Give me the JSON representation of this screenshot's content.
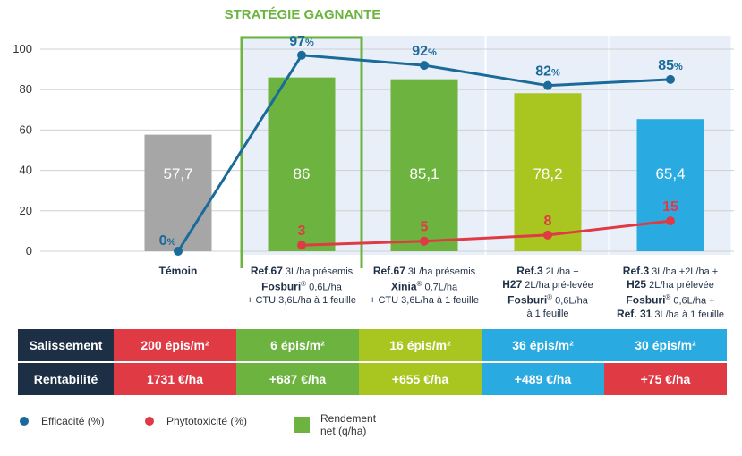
{
  "strategy_label": "STRATÉGIE GAGNANTE",
  "chart_data": {
    "type": "bar",
    "ylim": [
      0,
      100
    ],
    "yticks": [
      0,
      20,
      40,
      60,
      80,
      100
    ],
    "categories": [
      {
        "lines": [
          [
            "b",
            "Témoin"
          ]
        ]
      },
      {
        "lines": [
          [
            "b",
            "Ref.67"
          ],
          [
            "n",
            " 3L/ha présemis"
          ],
          [
            "br"
          ],
          [
            "b",
            "Fosburi"
          ],
          [
            "sup",
            "®"
          ],
          [
            "n",
            " 0,6L/ha"
          ],
          [
            "br"
          ],
          [
            "n",
            "+ CTU 3,6L/ha à 1 feuille"
          ]
        ]
      },
      {
        "lines": [
          [
            "b",
            "Ref.67"
          ],
          [
            "n",
            " 3L/ha présemis"
          ],
          [
            "br"
          ],
          [
            "b",
            "Xinia"
          ],
          [
            "sup",
            "®"
          ],
          [
            "n",
            " 0,7L/ha"
          ],
          [
            "br"
          ],
          [
            "n",
            "+ CTU 3,6L/ha à 1 feuille"
          ]
        ]
      },
      {
        "lines": [
          [
            "b",
            "Ref.3"
          ],
          [
            "n",
            " 2L/ha +"
          ],
          [
            "br"
          ],
          [
            "b",
            "H27"
          ],
          [
            "n",
            " 2L/ha pré-levée"
          ],
          [
            "br"
          ],
          [
            "b",
            "Fosburi"
          ],
          [
            "sup",
            "®"
          ],
          [
            "n",
            " 0,6L/ha"
          ],
          [
            "br"
          ],
          [
            "n",
            "à 1 feuille"
          ]
        ]
      },
      {
        "lines": [
          [
            "b",
            "Ref.3"
          ],
          [
            "n",
            " 3L/ha +2L/ha +"
          ],
          [
            "br"
          ],
          [
            "b",
            "H25"
          ],
          [
            "n",
            " 2L/ha prélevée"
          ],
          [
            "br"
          ],
          [
            "b",
            "Fosburi"
          ],
          [
            "sup",
            "®"
          ],
          [
            "n",
            " 0,6L/ha +"
          ],
          [
            "br"
          ],
          [
            "b",
            "Ref. 31"
          ],
          [
            "n",
            " 3L/ha à 1 feuille"
          ]
        ]
      }
    ],
    "series": [
      {
        "name": "Rendement net (q/ha)",
        "kind": "bar",
        "values": [
          57.7,
          86,
          85.1,
          78.2,
          65.4
        ],
        "labels": [
          "57,7",
          "86",
          "85,1",
          "78,2",
          "65,4"
        ],
        "colors": [
          "#a6a6a6",
          "#6cb33f",
          "#6cb33f",
          "#a8c520",
          "#29abe2"
        ]
      },
      {
        "name": "Efficacité (%)",
        "kind": "line",
        "color": "#1a6b9a",
        "values": [
          0,
          97,
          92,
          82,
          85
        ],
        "labels": [
          "0%",
          "97%",
          "92%",
          "82%",
          "85%"
        ]
      },
      {
        "name": "Phytotoxicité (%)",
        "kind": "line",
        "color": "#e03a45",
        "values": [
          null,
          3,
          5,
          8,
          15
        ],
        "labels": [
          "",
          "3",
          "5",
          "8",
          "15"
        ]
      }
    ]
  },
  "table": {
    "rows": [
      {
        "header": "Salissement",
        "cells": [
          "200 épis/m²",
          "6 épis/m²",
          "16 épis/m²",
          "36 épis/m²",
          "30 épis/m²"
        ],
        "colors": [
          "#e03a45",
          "#6cb33f",
          "#a8c520",
          "#29abe2",
          "#29abe2"
        ]
      },
      {
        "header": "Rentabilité",
        "cells": [
          "1731 €/ha",
          "+687 €/ha",
          "+655 €/ha",
          "+489 €/ha",
          "+75 €/ha"
        ],
        "colors": [
          "#e03a45",
          "#6cb33f",
          "#a8c520",
          "#29abe2",
          "#e03a45"
        ]
      }
    ]
  },
  "legend": {
    "efficacite": "Efficacité (%)",
    "phyto": "Phytotoxicité (%)",
    "rendement_l1": "Rendement",
    "rendement_l2": "net (q/ha)",
    "colors": {
      "efficacite": "#1a6b9a",
      "phyto": "#e03a45",
      "rendement": "#6cb33f"
    }
  }
}
